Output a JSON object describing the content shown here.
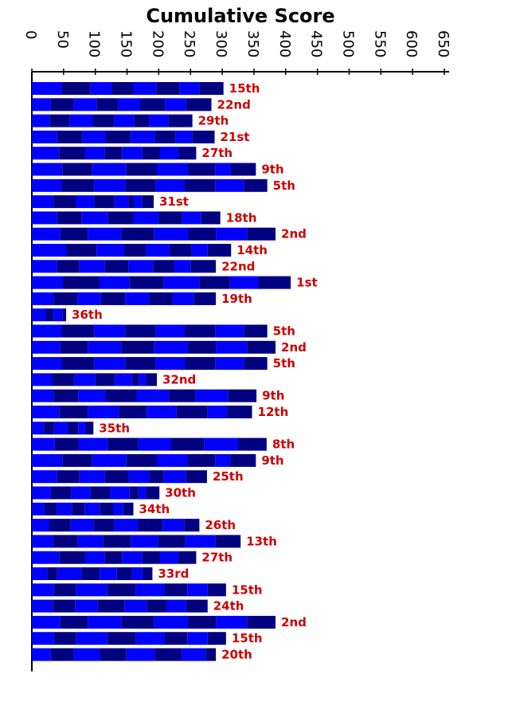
{
  "chart_data": {
    "type": "bar",
    "stacked": true,
    "orientation": "horizontal",
    "title": "Cumulative Score",
    "xlim": [
      0,
      650
    ],
    "x_ticks": [
      "0",
      "50",
      "100",
      "150",
      "200",
      "250",
      "300",
      "350",
      "400",
      "450",
      "500",
      "550",
      "600",
      "650"
    ],
    "x_axis_position": "top",
    "tick_label_rotation": 90,
    "segment_colors": [
      "#0000ff",
      "#000080"
    ],
    "rank_color": "#cc0000",
    "rows": [
      {
        "label": "15th",
        "segments": [
          47,
          45,
          34,
          34,
          36,
          37,
          31,
          38
        ]
      },
      {
        "label": "22nd",
        "segments": [
          30,
          36,
          36,
          34,
          34,
          40,
          33,
          40
        ]
      },
      {
        "label": "29th",
        "segments": [
          28,
          32,
          36,
          34,
          31,
          24,
          30,
          38
        ]
      },
      {
        "label": "21st",
        "segments": [
          40,
          40,
          36,
          40,
          38,
          32,
          27,
          35
        ]
      },
      {
        "label": "27th",
        "segments": [
          43,
          41,
          31,
          27,
          32,
          28,
          29,
          28
        ]
      },
      {
        "label": "9th",
        "segments": [
          48,
          47,
          54,
          48,
          49,
          43,
          24,
          40
        ]
      },
      {
        "label": "5th",
        "segments": [
          47,
          51,
          49,
          48,
          46,
          48,
          45,
          37
        ]
      },
      {
        "label": "31st",
        "segments": [
          34,
          35,
          29,
          32,
          22,
          8,
          14,
          18
        ]
      },
      {
        "label": "18th",
        "segments": [
          40,
          38,
          42,
          40,
          40,
          36,
          31,
          30
        ]
      },
      {
        "label": "2nd",
        "segments": [
          45,
          43,
          53,
          52,
          53,
          44,
          49,
          45
        ]
      },
      {
        "label": "14th",
        "segments": [
          54,
          48,
          43,
          35,
          37,
          35,
          25,
          37
        ]
      },
      {
        "label": "22nd",
        "segments": [
          40,
          35,
          40,
          37,
          39,
          33,
          26,
          40
        ]
      },
      {
        "label": "1st",
        "segments": [
          49,
          57,
          48,
          54,
          56,
          48,
          45,
          51
        ]
      },
      {
        "label": "19th",
        "segments": [
          34,
          38,
          37,
          38,
          38,
          37,
          33,
          35
        ]
      },
      {
        "label": "36th",
        "segments": [
          22,
          12,
          14,
          6
        ]
      },
      {
        "label": "5th",
        "segments": [
          47,
          51,
          49,
          48,
          46,
          48,
          45,
          37
        ]
      },
      {
        "label": "2nd",
        "segments": [
          45,
          43,
          53,
          52,
          53,
          44,
          49,
          45
        ]
      },
      {
        "label": "5th",
        "segments": [
          47,
          51,
          49,
          48,
          46,
          48,
          45,
          37
        ]
      },
      {
        "label": "32nd",
        "segments": [
          32,
          35,
          33,
          31,
          27,
          11,
          11,
          17
        ]
      },
      {
        "label": "9th",
        "segments": [
          34,
          39,
          43,
          49,
          51,
          42,
          51,
          45
        ]
      },
      {
        "label": "12th",
        "segments": [
          43,
          45,
          49,
          44,
          47,
          49,
          31,
          39
        ]
      },
      {
        "label": "35th",
        "segments": [
          19,
          16,
          22,
          16,
          11,
          13
        ]
      },
      {
        "label": "8th",
        "segments": [
          36,
          38,
          45,
          49,
          51,
          53,
          53,
          45
        ]
      },
      {
        "label": "9th",
        "segments": [
          48,
          47,
          54,
          48,
          49,
          43,
          24,
          40
        ]
      },
      {
        "label": "25th",
        "segments": [
          40,
          35,
          40,
          38,
          32,
          23,
          35,
          33
        ]
      },
      {
        "label": "30th",
        "segments": [
          30,
          32,
          30,
          31,
          31,
          14,
          12,
          21
        ]
      },
      {
        "label": "34th",
        "segments": [
          20,
          20,
          23,
          20,
          24,
          21,
          16,
          16
        ]
      },
      {
        "label": "26th",
        "segments": [
          27,
          34,
          36,
          33,
          37,
          39,
          34,
          24
        ]
      },
      {
        "label": "13th",
        "segments": [
          33,
          39,
          40,
          44,
          43,
          43,
          47,
          40
        ]
      },
      {
        "label": "27th",
        "segments": [
          43,
          41,
          31,
          27,
          32,
          28,
          29,
          28
        ]
      },
      {
        "label": "33rd",
        "segments": [
          24,
          16,
          38,
          29,
          27,
          24,
          16,
          16
        ]
      },
      {
        "label": "15th",
        "segments": [
          35,
          35,
          49,
          45,
          45,
          36,
          32,
          29
        ]
      },
      {
        "label": "24th",
        "segments": [
          33,
          35,
          36,
          42,
          35,
          31,
          31,
          34
        ]
      },
      {
        "label": "2nd",
        "segments": [
          45,
          43,
          53,
          52,
          53,
          44,
          49,
          45
        ]
      },
      {
        "label": "15th",
        "segments": [
          35,
          35,
          49,
          45,
          45,
          36,
          32,
          29
        ]
      },
      {
        "label": "20th",
        "segments": [
          30,
          36,
          42,
          41,
          45,
          42,
          38,
          16
        ]
      }
    ]
  }
}
